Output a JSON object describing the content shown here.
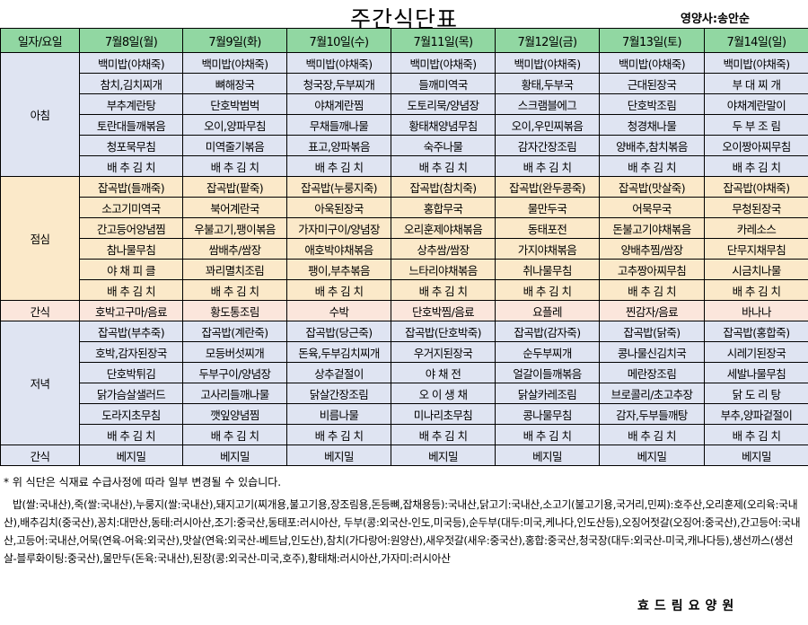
{
  "title": "주간식단표",
  "author": "영양사:송안순",
  "header": [
    "일자/요일",
    "7월8일(월)",
    "7월9일(화)",
    "7월10일(수)",
    "7월11일(목)",
    "7월12일(금)",
    "7월13일(토)",
    "7월14일(일)"
  ],
  "sections": [
    {
      "label": "아침",
      "rows": [
        [
          "백미밥(야채죽)",
          "백미밥(야채죽)",
          "백미밥(야채죽)",
          "백미밥(야채죽)",
          "백미밥(야채죽)",
          "백미밥(야채죽)",
          "백미밥(야채죽)"
        ],
        [
          "참치,김치찌개",
          "뼈해장국",
          "청국장,두부찌개",
          "들깨미역국",
          "황태,두부국",
          "근대된장국",
          "부 대 찌 개"
        ],
        [
          "부추계란탕",
          "단호박범벅",
          "야채계란찜",
          "도토리묵/양념장",
          "스크램블에그",
          "단호박조림",
          "야채계란말이"
        ],
        [
          "토란대들깨볶음",
          "오이,양파무침",
          "무채들깨나물",
          "황태채양념무침",
          "오이,우민찌볶음",
          "청경채나물",
          "두 부 조 림"
        ],
        [
          "청포묵무침",
          "미역줄기볶음",
          "표고,양파볶음",
          "숙주나물",
          "감자간장조림",
          "양배추,참치볶음",
          "오이짱아찌무침"
        ],
        [
          "배 추 김 치",
          "배 추 김 치",
          "배 추 김 치",
          "배 추 김 치",
          "배 추 김 치",
          "배 추 김 치",
          "배 추 김 치"
        ]
      ]
    },
    {
      "label": "점심",
      "rows": [
        [
          "잡곡밥(들깨죽)",
          "잡곡밥(팥죽)",
          "잡곡밥(누룽지죽)",
          "잡곡밥(참치죽)",
          "잡곡밥(완두콩죽)",
          "잡곡밥(맛살죽)",
          "잡곡밥(야채죽)"
        ],
        [
          "소고기미역국",
          "북어계란국",
          "아욱된장국",
          "홍합무국",
          "물만두국",
          "어묵무국",
          "무청된장국"
        ],
        [
          "간고등어양념찜",
          "우불고기,팽이볶음",
          "가자미구이/양념장",
          "오리훈제야채볶음",
          "동태포전",
          "돈불고기야채볶음",
          "카레소스"
        ],
        [
          "참나물무침",
          "쌈배추/쌈장",
          "애호박야채볶음",
          "상추쌈/쌈장",
          "가지야채볶음",
          "양배추찜/쌈장",
          "단무지채무침"
        ],
        [
          "야 채 피 클",
          "꽈리멸치조림",
          "팽이,부추볶음",
          "느타리야채볶음",
          "취나물무침",
          "고추짱아찌무침",
          "시금치나물"
        ],
        [
          "배 추 김 치",
          "배 추 김 치",
          "배 추 김 치",
          "배 추 김 치",
          "배 추 김 치",
          "배 추 김 치",
          "배 추 김 치"
        ]
      ]
    },
    {
      "label": "간식",
      "rows": [
        [
          "호박고구마/음료",
          "황도통조림",
          "수박",
          "단호박찜/음료",
          "요플레",
          "찐감자/음료",
          "바나나"
        ]
      ]
    },
    {
      "label": "저녁",
      "rows": [
        [
          "잡곡밥(부추죽)",
          "잡곡밥(계란죽)",
          "잡곡밥(당근죽)",
          "잡곡밥(단호박죽)",
          "잡곡밥(감자죽)",
          "잡곡밥(닭죽)",
          "잡곡밥(홍합죽)"
        ],
        [
          "호박,감자된장국",
          "모등버섯찌개",
          "돈육,두부김치찌개",
          "우거지된장국",
          "순두부찌개",
          "콩나물신김치국",
          "시레기된장국"
        ],
        [
          "단호박튀김",
          "두부구이/양념장",
          "상추겉절이",
          "야 채 전",
          "얼갈이들깨볶음",
          "메란장조림",
          "세발나물무침"
        ],
        [
          "닭가슴살샐러드",
          "고사리들깨나물",
          "닭살간장조림",
          "오 이 생 채",
          "닭살카레조림",
          "브로콜리/초고추장",
          "닭 도 리 탕"
        ],
        [
          "도라지초무침",
          "깻잎양념찜",
          "비름나물",
          "미나리초무침",
          "콩나물무침",
          "감자,두부들깨탕",
          "부추,양파겉절이"
        ],
        [
          "배 추 김 치",
          "배 추 김 치",
          "배 추 김 치",
          "배 추 김 치",
          "배 추 김 치",
          "배 추 김 치",
          "배 추 김 치"
        ]
      ]
    },
    {
      "label": "간식",
      "rows": [
        [
          "베지밀",
          "베지밀",
          "베지밀",
          "베지밀",
          "베지밀",
          "베지밀",
          "베지밀"
        ]
      ]
    }
  ],
  "notice": "* 위 식단은 식재료 수급사정에 따라 일부 변경될 수 있습니다.",
  "origin": "밥(쌀:국내산),죽(쌀:국내산),누룽지(쌀:국내산),돼지고기(찌개용,불고기용,장조림용,돈등뼈,잡채용등):국내산,닭고기:국내산,소고기(불고기용,국거리,민찌):호주산,오리훈제(오리육:국내산),배추김치(중국산),꽁치:대만산,동태:러시아산,조기:중국산,동태포:러시아산, 두부(콩:외국산-인도,미국등),순두부(대두:미국,케나다,인도산등),오징어젓갈(오징어:중국산),간고등어:국내산,고등어:국내산,어묵(연육-어육:외국산),맛살(연육:외국산-베트남,인도산),참치(가다랑어:원양산),새우젓갈(새우:중국산),홍합:중국산,청국장(대두:외국산-미국,캐나다등),생선까스(생선살-블루화이팅:중국산),물만두(돈육:국내산),된장(콩:외국산-미국,호주),황태채:러시아산,가자미:러시아산",
  "footer": "효드림요양원"
}
